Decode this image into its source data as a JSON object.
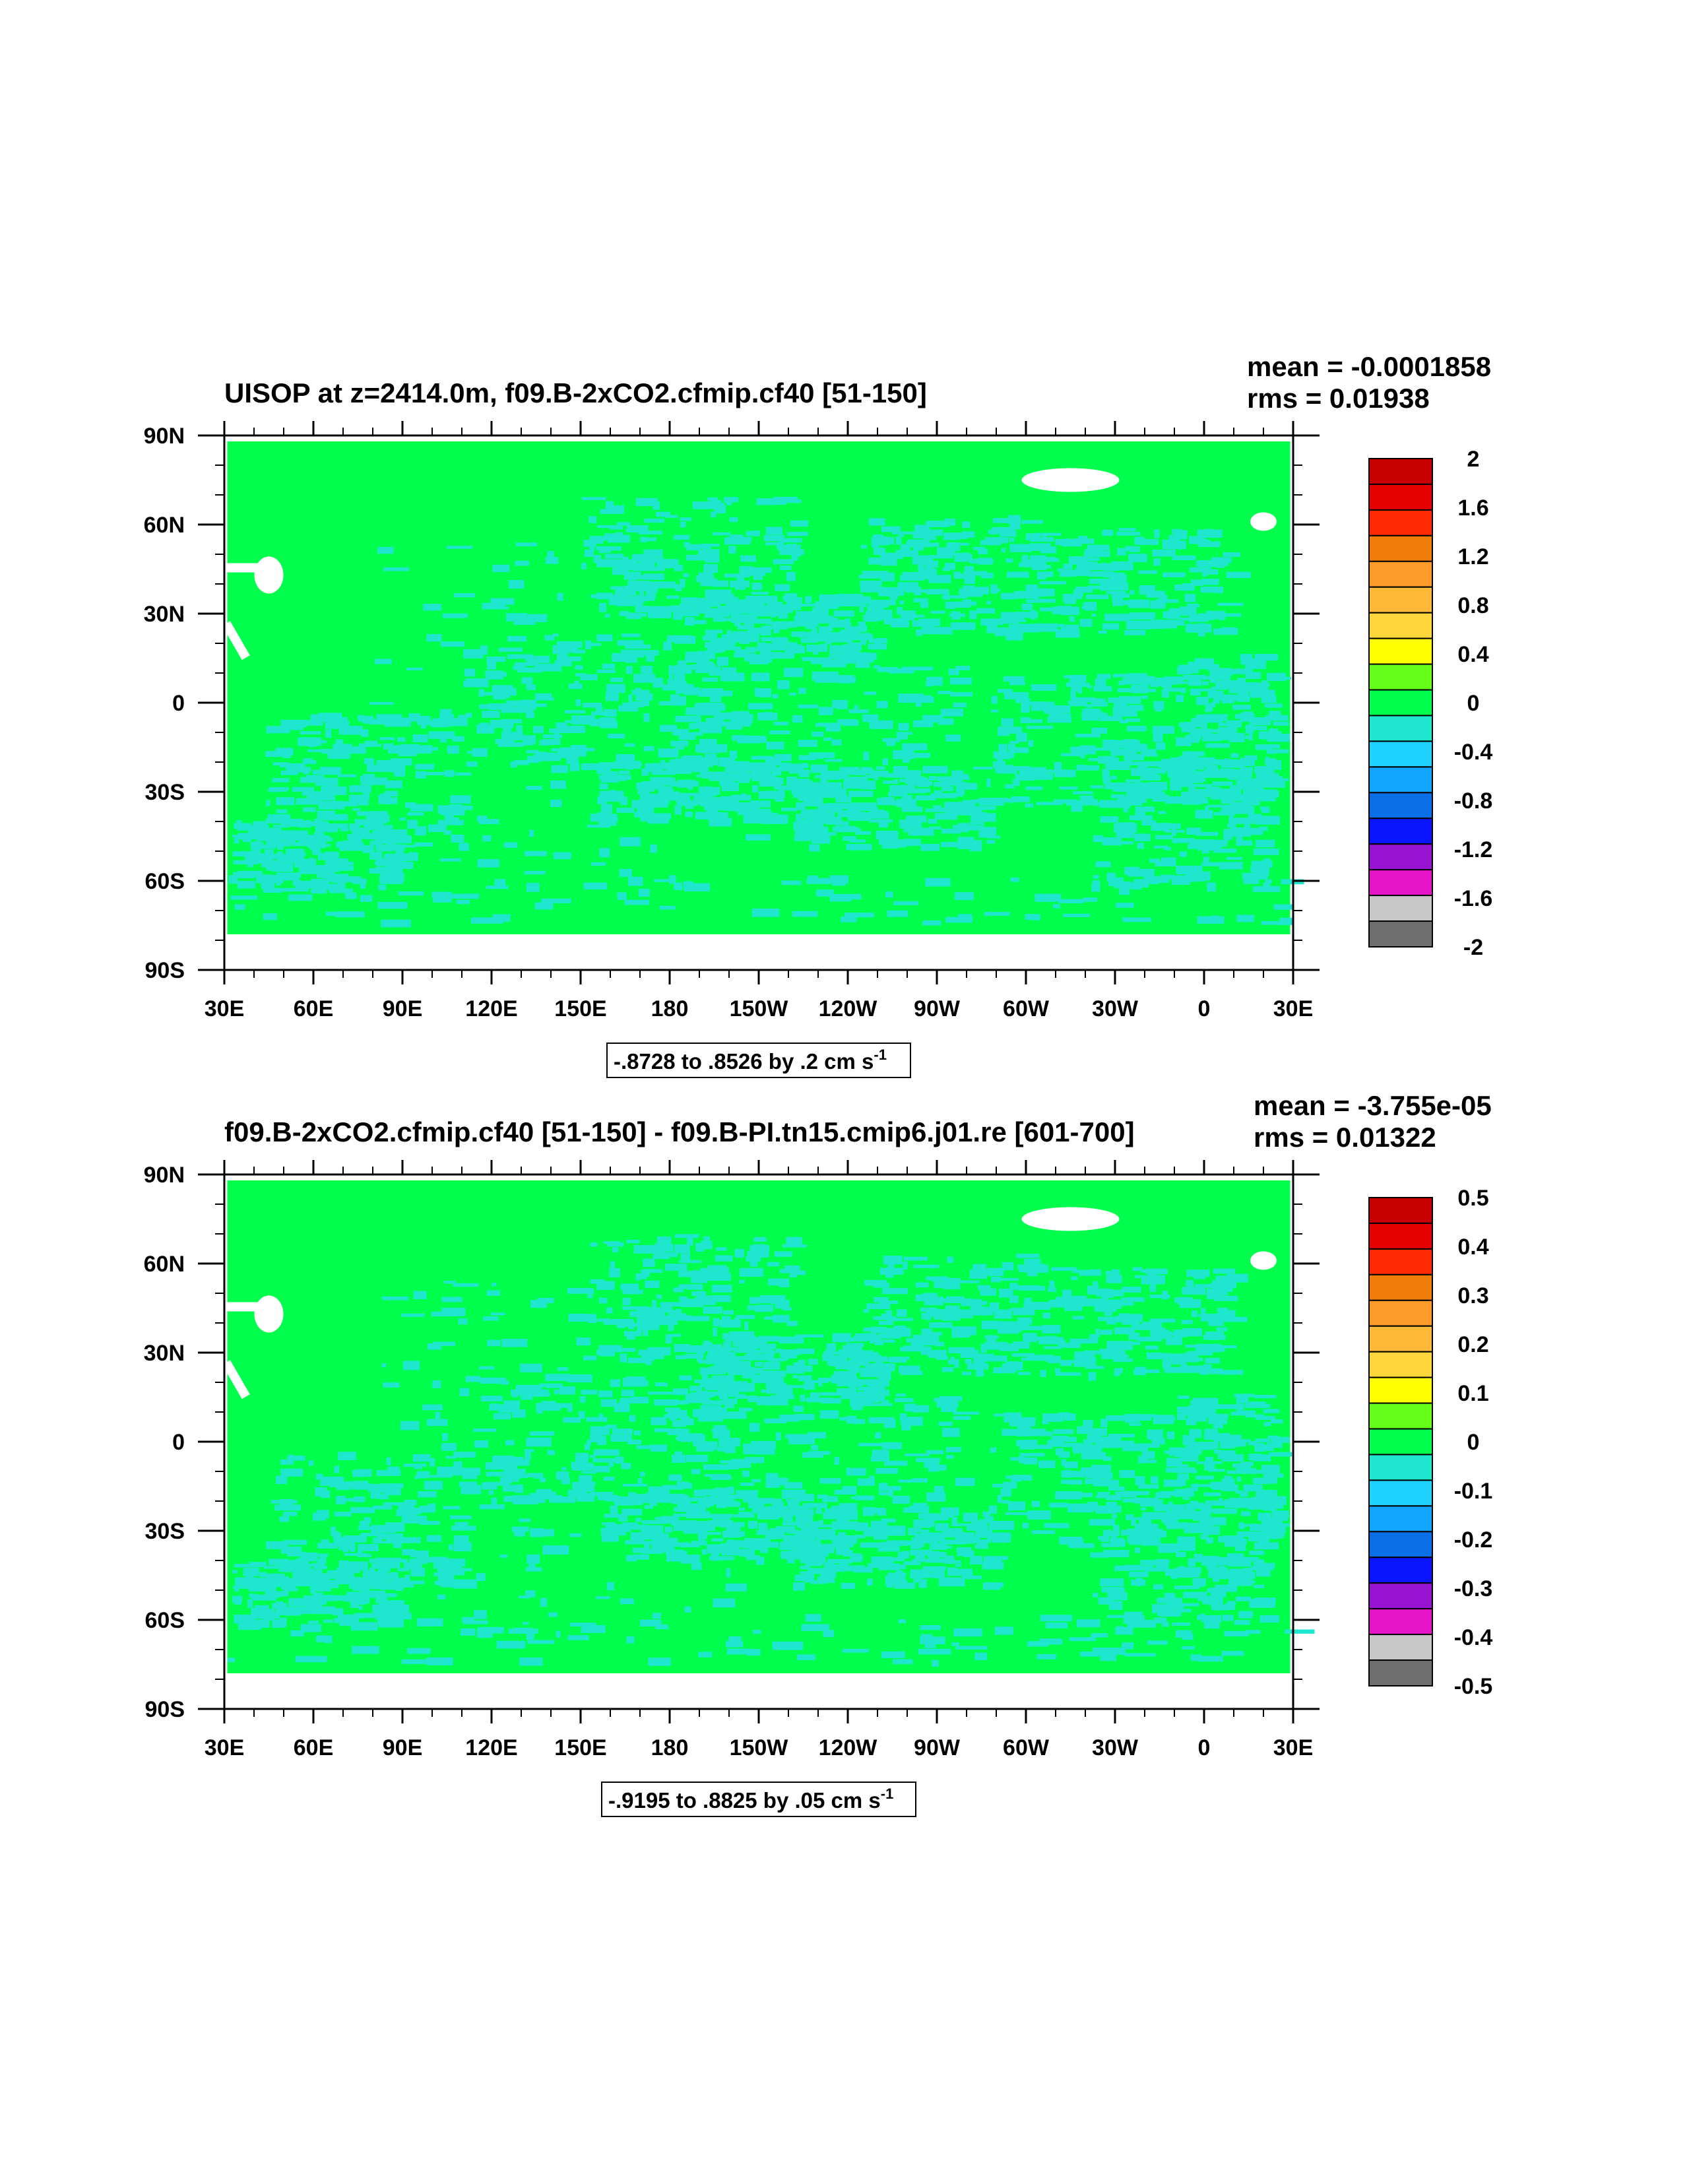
{
  "panels": [
    {
      "title": "UISOP at z=2414.0m, f09.B-2xCO2.cfmip.cf40 [51-150]",
      "mean_label": "mean = -0.0001858",
      "rms_label": "rms = 0.01938",
      "range_text": "-.8728 to .8526 by .2 cm s",
      "range_sup": "-1"
    },
    {
      "title": "f09.B-2xCO2.cfmip.cf40 [51-150] - f09.B-PI.tn15.cmip6.j01.re [601-700]",
      "mean_label": "mean = -3.755e-05",
      "rms_label": "rms = 0.01322",
      "range_text": "-.9195 to .8825 by .05 cm s",
      "range_sup": "-1"
    }
  ],
  "colors": {
    "background_green": "#00ff4d",
    "anomaly_cyan": "#1fe6cf",
    "missing": "#ffffff"
  },
  "chart_data": [
    {
      "type": "heatmap",
      "title": "UISOP at z=2414.0m, f09.B-2xCO2.cfmip.cf40 [51-150]",
      "mean": -0.0001858,
      "rms": 0.01938,
      "range": {
        "min": -0.8728,
        "max": 0.8526,
        "interval": 0.2,
        "units": "cm s-1"
      },
      "x_ticks": [
        "30E",
        "60E",
        "90E",
        "120E",
        "150E",
        "180",
        "150W",
        "120W",
        "90W",
        "60W",
        "30W",
        "0",
        "30E"
      ],
      "y_ticks": [
        "90N",
        "60N",
        "30N",
        "0",
        "30S",
        "60S",
        "90S"
      ],
      "xlim": [
        30,
        390
      ],
      "ylim": [
        -90,
        90
      ],
      "colorbar": {
        "labels": [
          "2",
          "1.6",
          "1.2",
          "0.8",
          "0.4",
          "0",
          "-0.4",
          "-0.8",
          "-1.2",
          "-1.6",
          "-2"
        ],
        "colors": [
          "#c80000",
          "#e60000",
          "#ff2a00",
          "#f07d0a",
          "#ff9b28",
          "#ffb938",
          "#ffd73c",
          "#ffff00",
          "#66ff1a",
          "#00ff4d",
          "#1fe6cf",
          "#1fd2ff",
          "#12a4ff",
          "#0a6fe6",
          "#0a14ff",
          "#9614d2",
          "#e614c8",
          "#c8c8c8",
          "#6e6e6e"
        ]
      }
    },
    {
      "type": "heatmap",
      "title": "f09.B-2xCO2.cfmip.cf40 [51-150] - f09.B-PI.tn15.cmip6.j01.re [601-700]",
      "mean": -3.755e-05,
      "rms": 0.01322,
      "range": {
        "min": -0.9195,
        "max": 0.8825,
        "interval": 0.05,
        "units": "cm s-1"
      },
      "x_ticks": [
        "30E",
        "60E",
        "90E",
        "120E",
        "150E",
        "180",
        "150W",
        "120W",
        "90W",
        "60W",
        "30W",
        "0",
        "30E"
      ],
      "y_ticks": [
        "90N",
        "60N",
        "30N",
        "0",
        "30S",
        "60S",
        "90S"
      ],
      "xlim": [
        30,
        390
      ],
      "ylim": [
        -90,
        90
      ],
      "colorbar": {
        "labels": [
          "0.5",
          "0.4",
          "0.3",
          "0.2",
          "0.1",
          "0",
          "-0.1",
          "-0.2",
          "-0.3",
          "-0.4",
          "-0.5"
        ],
        "colors": [
          "#c80000",
          "#e60000",
          "#ff2a00",
          "#f07d0a",
          "#ff9b28",
          "#ffb938",
          "#ffd73c",
          "#ffff00",
          "#66ff1a",
          "#00ff4d",
          "#1fe6cf",
          "#1fd2ff",
          "#12a4ff",
          "#0a6fe6",
          "#0a14ff",
          "#9614d2",
          "#e614c8",
          "#c8c8c8",
          "#6e6e6e"
        ]
      }
    }
  ]
}
